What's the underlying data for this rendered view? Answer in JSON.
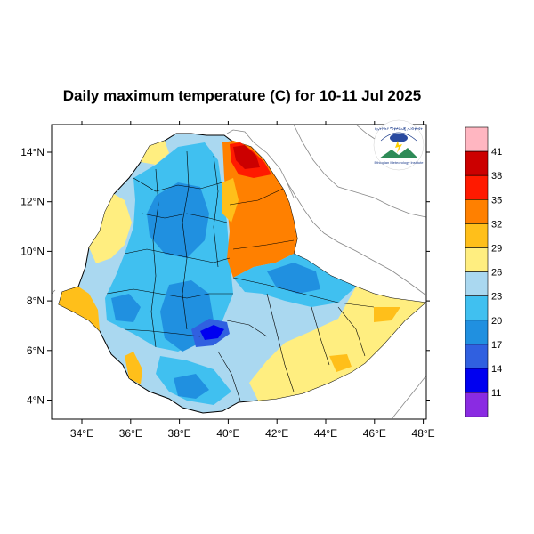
{
  "title": "Daily maximum temperature (C) for 10-11 Jul 2025",
  "lon_ticks": [
    "34°E",
    "36°E",
    "38°E",
    "40°E",
    "42°E",
    "44°E",
    "46°E",
    "48°E"
  ],
  "lat_ticks": [
    "14°N",
    "12°N",
    "10°N",
    "8°N",
    "6°N",
    "4°N"
  ],
  "colorbar": {
    "labels": [
      "41",
      "38",
      "35",
      "32",
      "29",
      "26",
      "23",
      "20",
      "17",
      "14",
      "11"
    ],
    "colors": [
      "#ffb6c1",
      "#cc0000",
      "#ff1a00",
      "#ff8000",
      "#ffbf1a",
      "#ffee80",
      "#aad8f0",
      "#40c0f0",
      "#2090e0",
      "#3060e0",
      "#0000f0",
      "#8a2be2"
    ]
  },
  "logo": {
    "top_text": "የኢትዮጵያ ሚቲዎሮሎጂ ኢንስቲትዩት",
    "bottom_text": "Ethiopian Meteorology Institute"
  },
  "chart_data": {
    "type": "map",
    "variable": "Daily maximum temperature (C)",
    "period": "10-11 Jul 2025",
    "lon_range": [
      33,
      48
    ],
    "lat_range": [
      3.2,
      15
    ],
    "levels": [
      11,
      14,
      17,
      20,
      23,
      26,
      29,
      32,
      35,
      38,
      41
    ]
  }
}
